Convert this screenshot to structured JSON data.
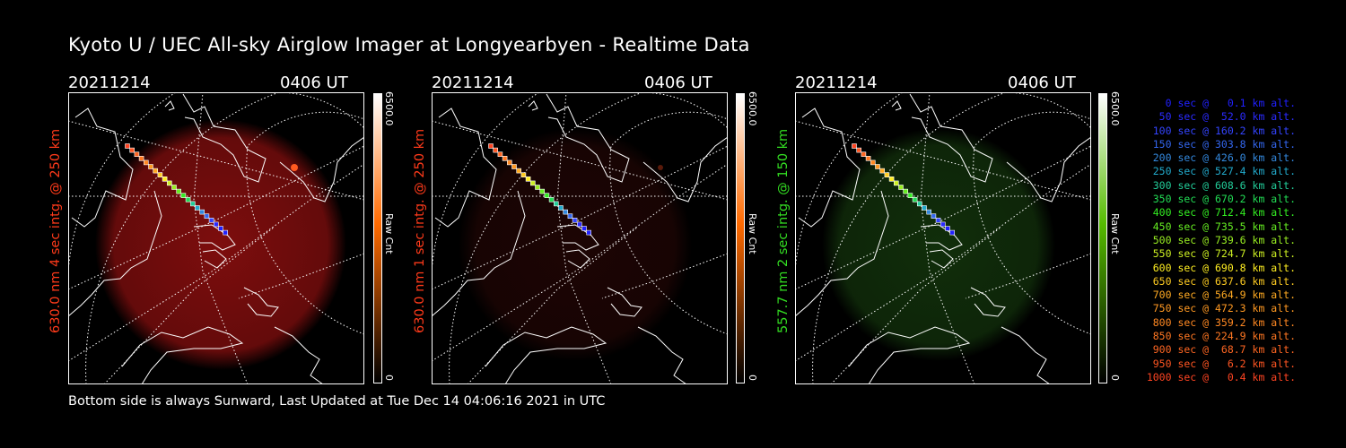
{
  "title": "Kyoto U / UEC All-sky Airglow Imager at Longyearbyen - Realtime Data",
  "footer": "Bottom side is always Sunward, Last Updated at Tue Dec 14 04:06:16 2021 in UTC",
  "panels": [
    {
      "date": "20211214",
      "time": "0406 UT",
      "ylabel": "630.0 nm  4 sec intg. @ 250 km",
      "label_color": "#ff3a1a",
      "cb_max": "6500.0",
      "cb_unit": "Raw Cnt",
      "cb_min": "0",
      "glow_color": "#8b0f0f",
      "glow_level": 0.9,
      "cb_top": "#ffffff",
      "cb_mid": "#ff6a00"
    },
    {
      "date": "20211214",
      "time": "0406 UT",
      "ylabel": "630.0 nm  1 sec intg. @ 250 km",
      "label_color": "#ff3a1a",
      "cb_max": "6500.0",
      "cb_unit": "Raw Cnt",
      "cb_min": "0",
      "glow_color": "#3a0a08",
      "glow_level": 0.5,
      "cb_top": "#ffffff",
      "cb_mid": "#ff6a00"
    },
    {
      "date": "20211214",
      "time": "0406 UT",
      "ylabel": "557.7 nm  2 sec intg. @ 150 km",
      "label_color": "#33dd22",
      "cb_max": "6500.0",
      "cb_unit": "Raw Cnt",
      "cb_min": "0",
      "glow_color": "#1c4d12",
      "glow_level": 0.6,
      "cb_top": "#ffffff",
      "cb_mid": "#55bb00"
    }
  ],
  "legend": [
    {
      "text": "0 sec @   0.1 km alt.",
      "color": "#2020ff"
    },
    {
      "text": "50 sec @  52.0 km alt.",
      "color": "#2a2aff"
    },
    {
      "text": "100 sec @ 160.2 km alt.",
      "color": "#3344ff"
    },
    {
      "text": "150 sec @ 303.8 km alt.",
      "color": "#3366ee"
    },
    {
      "text": "200 sec @ 426.0 km alt.",
      "color": "#3388dd"
    },
    {
      "text": "250 sec @ 527.4 km alt.",
      "color": "#22aacc"
    },
    {
      "text": "300 sec @ 608.6 km alt.",
      "color": "#22cc99"
    },
    {
      "text": "350 sec @ 670.2 km alt.",
      "color": "#22dd55"
    },
    {
      "text": "400 sec @ 712.4 km alt.",
      "color": "#33ee22"
    },
    {
      "text": "450 sec @ 735.5 km alt.",
      "color": "#66ee22"
    },
    {
      "text": "500 sec @ 739.6 km alt.",
      "color": "#99ee22"
    },
    {
      "text": "550 sec @ 724.7 km alt.",
      "color": "#ccee22"
    },
    {
      "text": "600 sec @ 690.8 km alt.",
      "color": "#ffee22"
    },
    {
      "text": "650 sec @ 637.6 km alt.",
      "color": "#ffcc22"
    },
    {
      "text": "700 sec @ 564.9 km alt.",
      "color": "#ffaa22"
    },
    {
      "text": "750 sec @ 472.3 km alt.",
      "color": "#ff9922"
    },
    {
      "text": "800 sec @ 359.2 km alt.",
      "color": "#ff8822"
    },
    {
      "text": "850 sec @ 224.9 km alt.",
      "color": "#ff7722"
    },
    {
      "text": "900 sec @  68.7 km alt.",
      "color": "#ff6622"
    },
    {
      "text": "950 sec @   6.2 km alt.",
      "color": "#ff5522"
    },
    {
      "text": "1000 sec @   0.4 km alt.",
      "color": "#ff4422"
    }
  ]
}
